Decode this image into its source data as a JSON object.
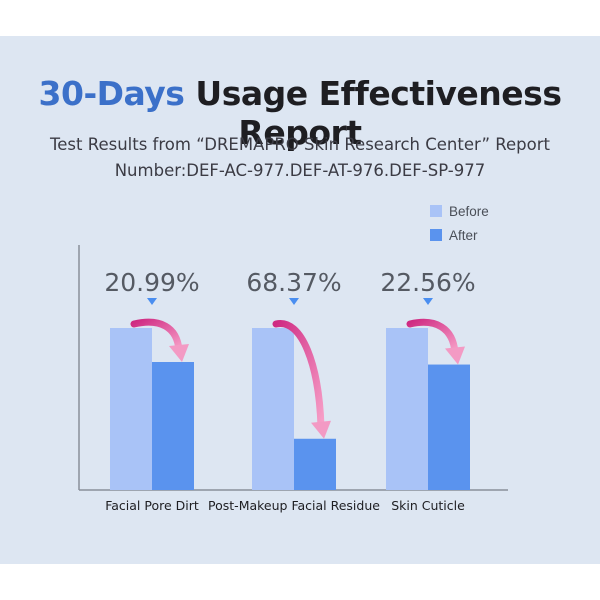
{
  "header": {
    "title_accent": "30-Days",
    "title_rest": " Usage Effectiveness Report",
    "subtitle_line1": "Test Results from “DREMAPRO Skin Research Center” Report",
    "subtitle_line2": "Number:DEF-AC-977.DEF-AT-976.DEF-SP-977"
  },
  "colors": {
    "background": "#dde6f2",
    "before": "#a9c3f7",
    "after": "#5a93ee",
    "arrow": "#e8468f",
    "accent": "#3b70c9",
    "pointer": "#4a8ef0"
  },
  "chart_data": {
    "type": "bar",
    "title": "30-Days Usage Effectiveness Report",
    "categories": [
      "Facial Pore Dirt",
      "Post-Makeup Facial Residue",
      "Skin Cuticle"
    ],
    "series": [
      {
        "name": "Before",
        "values": [
          100,
          100,
          100
        ]
      },
      {
        "name": "After",
        "values": [
          79.01,
          31.63,
          77.44
        ]
      }
    ],
    "annotations": [
      "20.99%",
      "68.37%",
      "22.56%"
    ],
    "legend": [
      "Before",
      "After"
    ],
    "legend_position": "top-right",
    "ylim": [
      0,
      100
    ],
    "xlabel": "",
    "ylabel": ""
  }
}
